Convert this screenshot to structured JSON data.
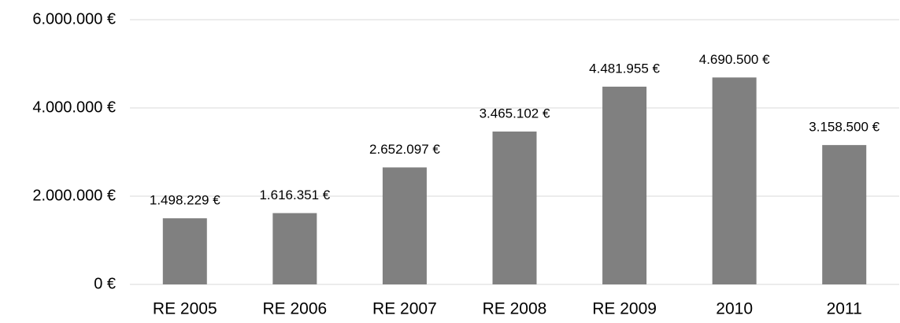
{
  "chart_data": {
    "type": "bar",
    "categories": [
      "RE 2005",
      "RE 2006",
      "RE 2007",
      "RE 2008",
      "RE 2009",
      "2010",
      "2011"
    ],
    "values": [
      1498229,
      1616351,
      2652097,
      3465102,
      4481955,
      4690500,
      3158500
    ],
    "value_labels": [
      "1.498.229 €",
      "1.616.351 €",
      "2.652.097 €",
      "3.465.102 €",
      "4.481.955 €",
      "4.690.500 €",
      "3.158.500 €"
    ],
    "color": "#808080",
    "ylim": [
      0,
      6000000
    ],
    "yticks": [
      {
        "value": 0,
        "label": "0 €"
      },
      {
        "value": 2000000,
        "label": "2.000.000 €"
      },
      {
        "value": 4000000,
        "label": "4.000.000 €"
      },
      {
        "value": 6000000,
        "label": "6.000.000 €"
      }
    ],
    "grid": true
  }
}
